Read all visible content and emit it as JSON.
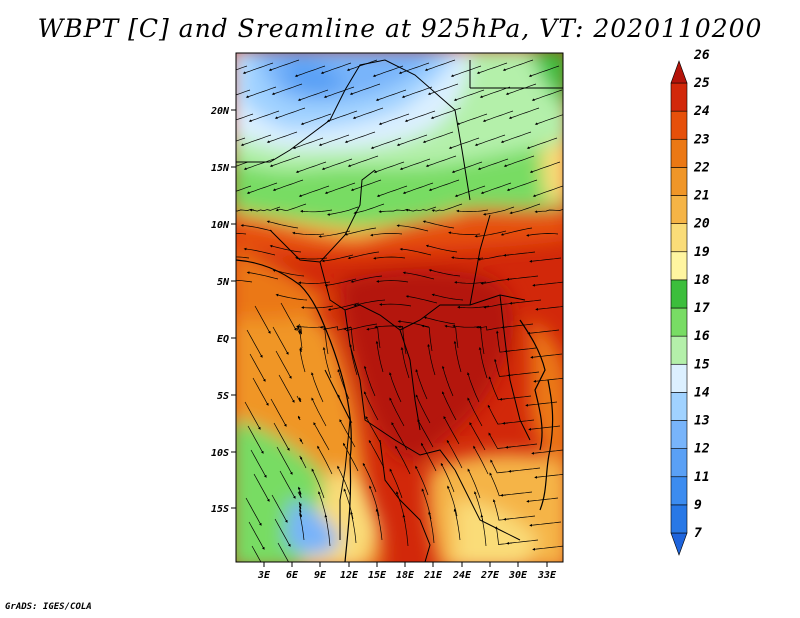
{
  "title": "WBPT [C] and Sreamline at 925hPa, VT: 2020110200",
  "footer": "GrADS: IGES/COLA",
  "map": {
    "lat_labels": [
      "20N",
      "15N",
      "10N",
      "5N",
      "EQ",
      "5S",
      "10S",
      "15S"
    ],
    "lon_labels": [
      "3E",
      "6E",
      "9E",
      "12E",
      "15E",
      "18E",
      "21E",
      "24E",
      "27E",
      "30E",
      "33E"
    ]
  },
  "colorbar": {
    "labels": [
      "7",
      "9",
      "11",
      "12",
      "13",
      "14",
      "15",
      "16",
      "17",
      "18",
      "19",
      "20",
      "21",
      "22",
      "23",
      "24",
      "25",
      "26"
    ],
    "colors": [
      "#1e64dc",
      "#2878e6",
      "#3c8cf0",
      "#5aa0f5",
      "#78b4fa",
      "#a0d2ff",
      "#dcf0ff",
      "#b4f0aa",
      "#78dc64",
      "#3cbe3c",
      "#fff5a0",
      "#fadc78",
      "#f5b446",
      "#f09628",
      "#eb7814",
      "#e6500a",
      "#d2280a",
      "#b4140a"
    ]
  }
}
